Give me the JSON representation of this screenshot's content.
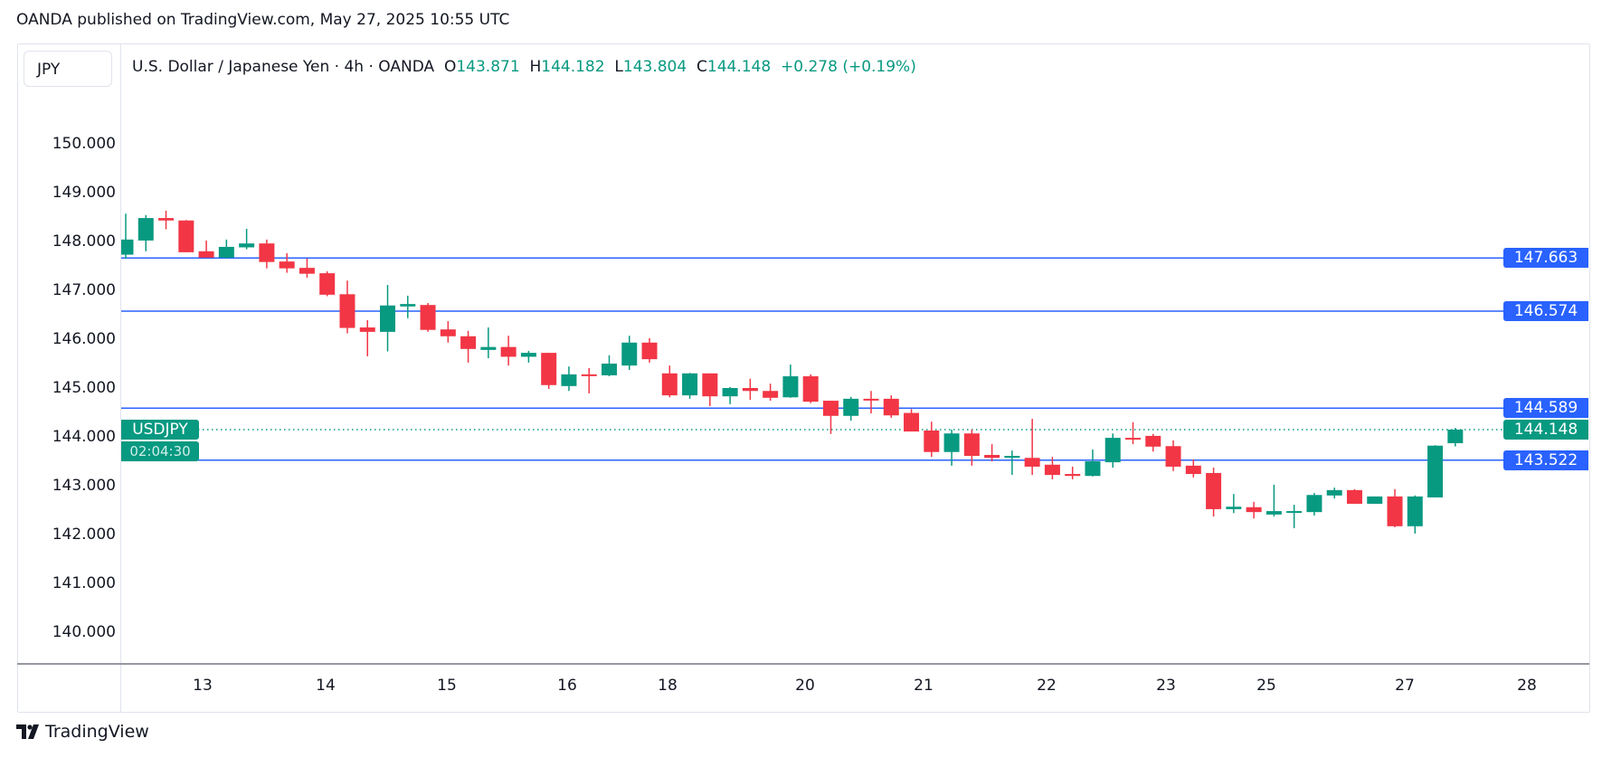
{
  "header": {
    "published": "OANDA published on TradingView.com, May 27, 2025 10:55 UTC"
  },
  "symbol_button": "JPY",
  "legend": {
    "title": "U.S. Dollar / Japanese Yen · 4h · OANDA",
    "o_label": "O",
    "o": "143.871",
    "h_label": "H",
    "h": "144.182",
    "l_label": "L",
    "l": "143.804",
    "c_label": "C",
    "c": "144.148",
    "change": "+0.278 (+0.19%)"
  },
  "current": {
    "price": "144.148",
    "countdown": "02:04:30",
    "tag": "USDJPY"
  },
  "colors": {
    "up": "#089981",
    "down": "#F23645",
    "level": "#2962FF"
  },
  "footer": {
    "brand": "TradingView"
  },
  "chart_data": {
    "type": "candlestick",
    "title": "U.S. Dollar / Japanese Yen · 4h · OANDA",
    "y_ticks": [
      "150.000",
      "149.000",
      "148.000",
      "147.000",
      "146.000",
      "145.000",
      "144.000",
      "143.000",
      "142.000",
      "141.000",
      "140.000"
    ],
    "ylim": [
      140,
      150
    ],
    "x_ticks": [
      "13",
      "14",
      "15",
      "16",
      "18",
      "20",
      "21",
      "22",
      "23",
      "25",
      "27",
      "28"
    ],
    "levels": [
      {
        "value": 147.663,
        "label": "147.663"
      },
      {
        "value": 146.574,
        "label": "146.574"
      },
      {
        "value": 144.589,
        "label": "144.589"
      },
      {
        "value": 143.522,
        "label": "143.522"
      }
    ],
    "last_price": 144.148,
    "ohlc": [
      [
        147.73,
        148.57,
        147.65,
        148.04
      ],
      [
        148.02,
        148.54,
        147.8,
        148.48
      ],
      [
        148.48,
        148.63,
        148.25,
        148.43
      ],
      [
        148.43,
        148.44,
        147.78,
        147.78
      ],
      [
        147.8,
        148.02,
        147.67,
        147.67
      ],
      [
        147.67,
        148.04,
        147.65,
        147.89
      ],
      [
        147.88,
        148.26,
        147.84,
        147.96
      ],
      [
        147.96,
        148.04,
        147.45,
        147.58
      ],
      [
        147.59,
        147.76,
        147.36,
        147.45
      ],
      [
        147.46,
        147.65,
        147.26,
        147.34
      ],
      [
        147.35,
        147.39,
        146.88,
        146.91
      ],
      [
        146.92,
        147.2,
        146.12,
        146.23
      ],
      [
        146.24,
        146.39,
        145.65,
        146.15
      ],
      [
        146.15,
        147.11,
        145.75,
        146.69
      ],
      [
        146.67,
        146.89,
        146.43,
        146.72
      ],
      [
        146.7,
        146.74,
        146.15,
        146.19
      ],
      [
        146.2,
        146.37,
        145.93,
        146.06
      ],
      [
        146.06,
        146.17,
        145.52,
        145.8
      ],
      [
        145.78,
        146.24,
        145.61,
        145.84
      ],
      [
        145.84,
        146.07,
        145.46,
        145.64
      ],
      [
        145.64,
        145.76,
        145.52,
        145.72
      ],
      [
        145.72,
        145.72,
        144.98,
        145.06
      ],
      [
        145.04,
        145.44,
        144.94,
        145.28
      ],
      [
        145.28,
        145.41,
        144.89,
        145.26
      ],
      [
        145.26,
        145.67,
        145.24,
        145.5
      ],
      [
        145.46,
        146.07,
        145.37,
        145.93
      ],
      [
        145.93,
        146.02,
        145.52,
        145.59
      ],
      [
        145.3,
        145.46,
        144.81,
        144.85
      ],
      [
        144.85,
        145.31,
        144.78,
        145.3
      ],
      [
        145.3,
        145.3,
        144.63,
        144.83
      ],
      [
        144.83,
        145.02,
        144.67,
        145.0
      ],
      [
        145.0,
        145.19,
        144.76,
        144.94
      ],
      [
        144.94,
        145.09,
        144.74,
        144.8
      ],
      [
        144.81,
        145.48,
        144.8,
        145.24
      ],
      [
        145.24,
        145.28,
        144.69,
        144.72
      ],
      [
        144.74,
        144.74,
        144.06,
        144.43
      ],
      [
        144.43,
        144.82,
        144.33,
        144.78
      ],
      [
        144.78,
        144.94,
        144.48,
        144.76
      ],
      [
        144.78,
        144.85,
        144.39,
        144.44
      ],
      [
        144.49,
        144.57,
        144.11,
        144.11
      ],
      [
        144.13,
        144.31,
        143.59,
        143.69
      ],
      [
        143.69,
        144.15,
        143.41,
        144.07
      ],
      [
        144.07,
        144.15,
        143.41,
        143.61
      ],
      [
        143.63,
        143.85,
        143.5,
        143.57
      ],
      [
        143.6,
        143.72,
        143.22,
        143.61
      ],
      [
        143.57,
        144.37,
        143.22,
        143.39
      ],
      [
        143.43,
        143.59,
        143.13,
        143.22
      ],
      [
        143.24,
        143.39,
        143.13,
        143.2
      ],
      [
        143.2,
        143.74,
        143.19,
        143.5
      ],
      [
        143.48,
        144.07,
        143.37,
        143.98
      ],
      [
        143.98,
        144.3,
        143.85,
        143.96
      ],
      [
        144.02,
        144.06,
        143.7,
        143.8
      ],
      [
        143.81,
        143.93,
        143.3,
        143.39
      ],
      [
        143.41,
        143.54,
        143.17,
        143.24
      ],
      [
        143.26,
        143.37,
        142.37,
        142.52
      ],
      [
        142.52,
        142.83,
        142.44,
        142.57
      ],
      [
        142.56,
        142.67,
        142.33,
        142.46
      ],
      [
        142.41,
        143.02,
        142.37,
        142.48
      ],
      [
        142.46,
        142.61,
        142.13,
        142.48
      ],
      [
        142.46,
        142.85,
        142.39,
        142.81
      ],
      [
        142.8,
        142.96,
        142.74,
        142.91
      ],
      [
        142.91,
        142.93,
        142.63,
        142.63
      ],
      [
        142.63,
        142.78,
        142.63,
        142.78
      ],
      [
        142.78,
        142.93,
        142.15,
        142.17
      ],
      [
        142.17,
        142.8,
        142.02,
        142.78
      ],
      [
        142.76,
        143.83,
        142.76,
        143.82
      ],
      [
        143.871,
        144.182,
        143.804,
        144.148
      ]
    ]
  }
}
